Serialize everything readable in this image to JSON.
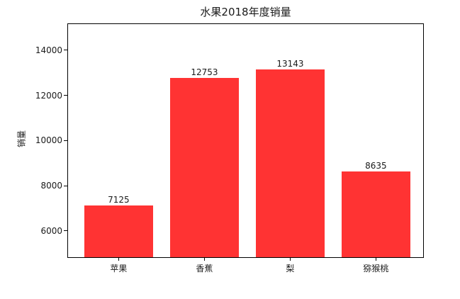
{
  "chart_data": {
    "type": "bar",
    "title": "水果2018年度销量",
    "xlabel": "",
    "ylabel": "销量",
    "categories": [
      "苹果",
      "香蕉",
      "梨",
      "猕猴桃"
    ],
    "values": [
      7125,
      12753,
      13143,
      8635
    ],
    "value_labels": [
      "7125",
      "12753",
      "13143",
      "8635"
    ],
    "yticks": [
      6000,
      8000,
      10000,
      12000,
      14000
    ],
    "ytick_labels": [
      "6000",
      "8000",
      "10000",
      "12000",
      "14000"
    ],
    "ylim": [
      4840,
      15150
    ],
    "xlim": [
      -0.59,
      3.55
    ],
    "bar_width": 0.8,
    "bar_color": "#ff3333",
    "axis_color": "#000000",
    "text_color": "#1a1a1a",
    "grid": false,
    "legend": false
  }
}
